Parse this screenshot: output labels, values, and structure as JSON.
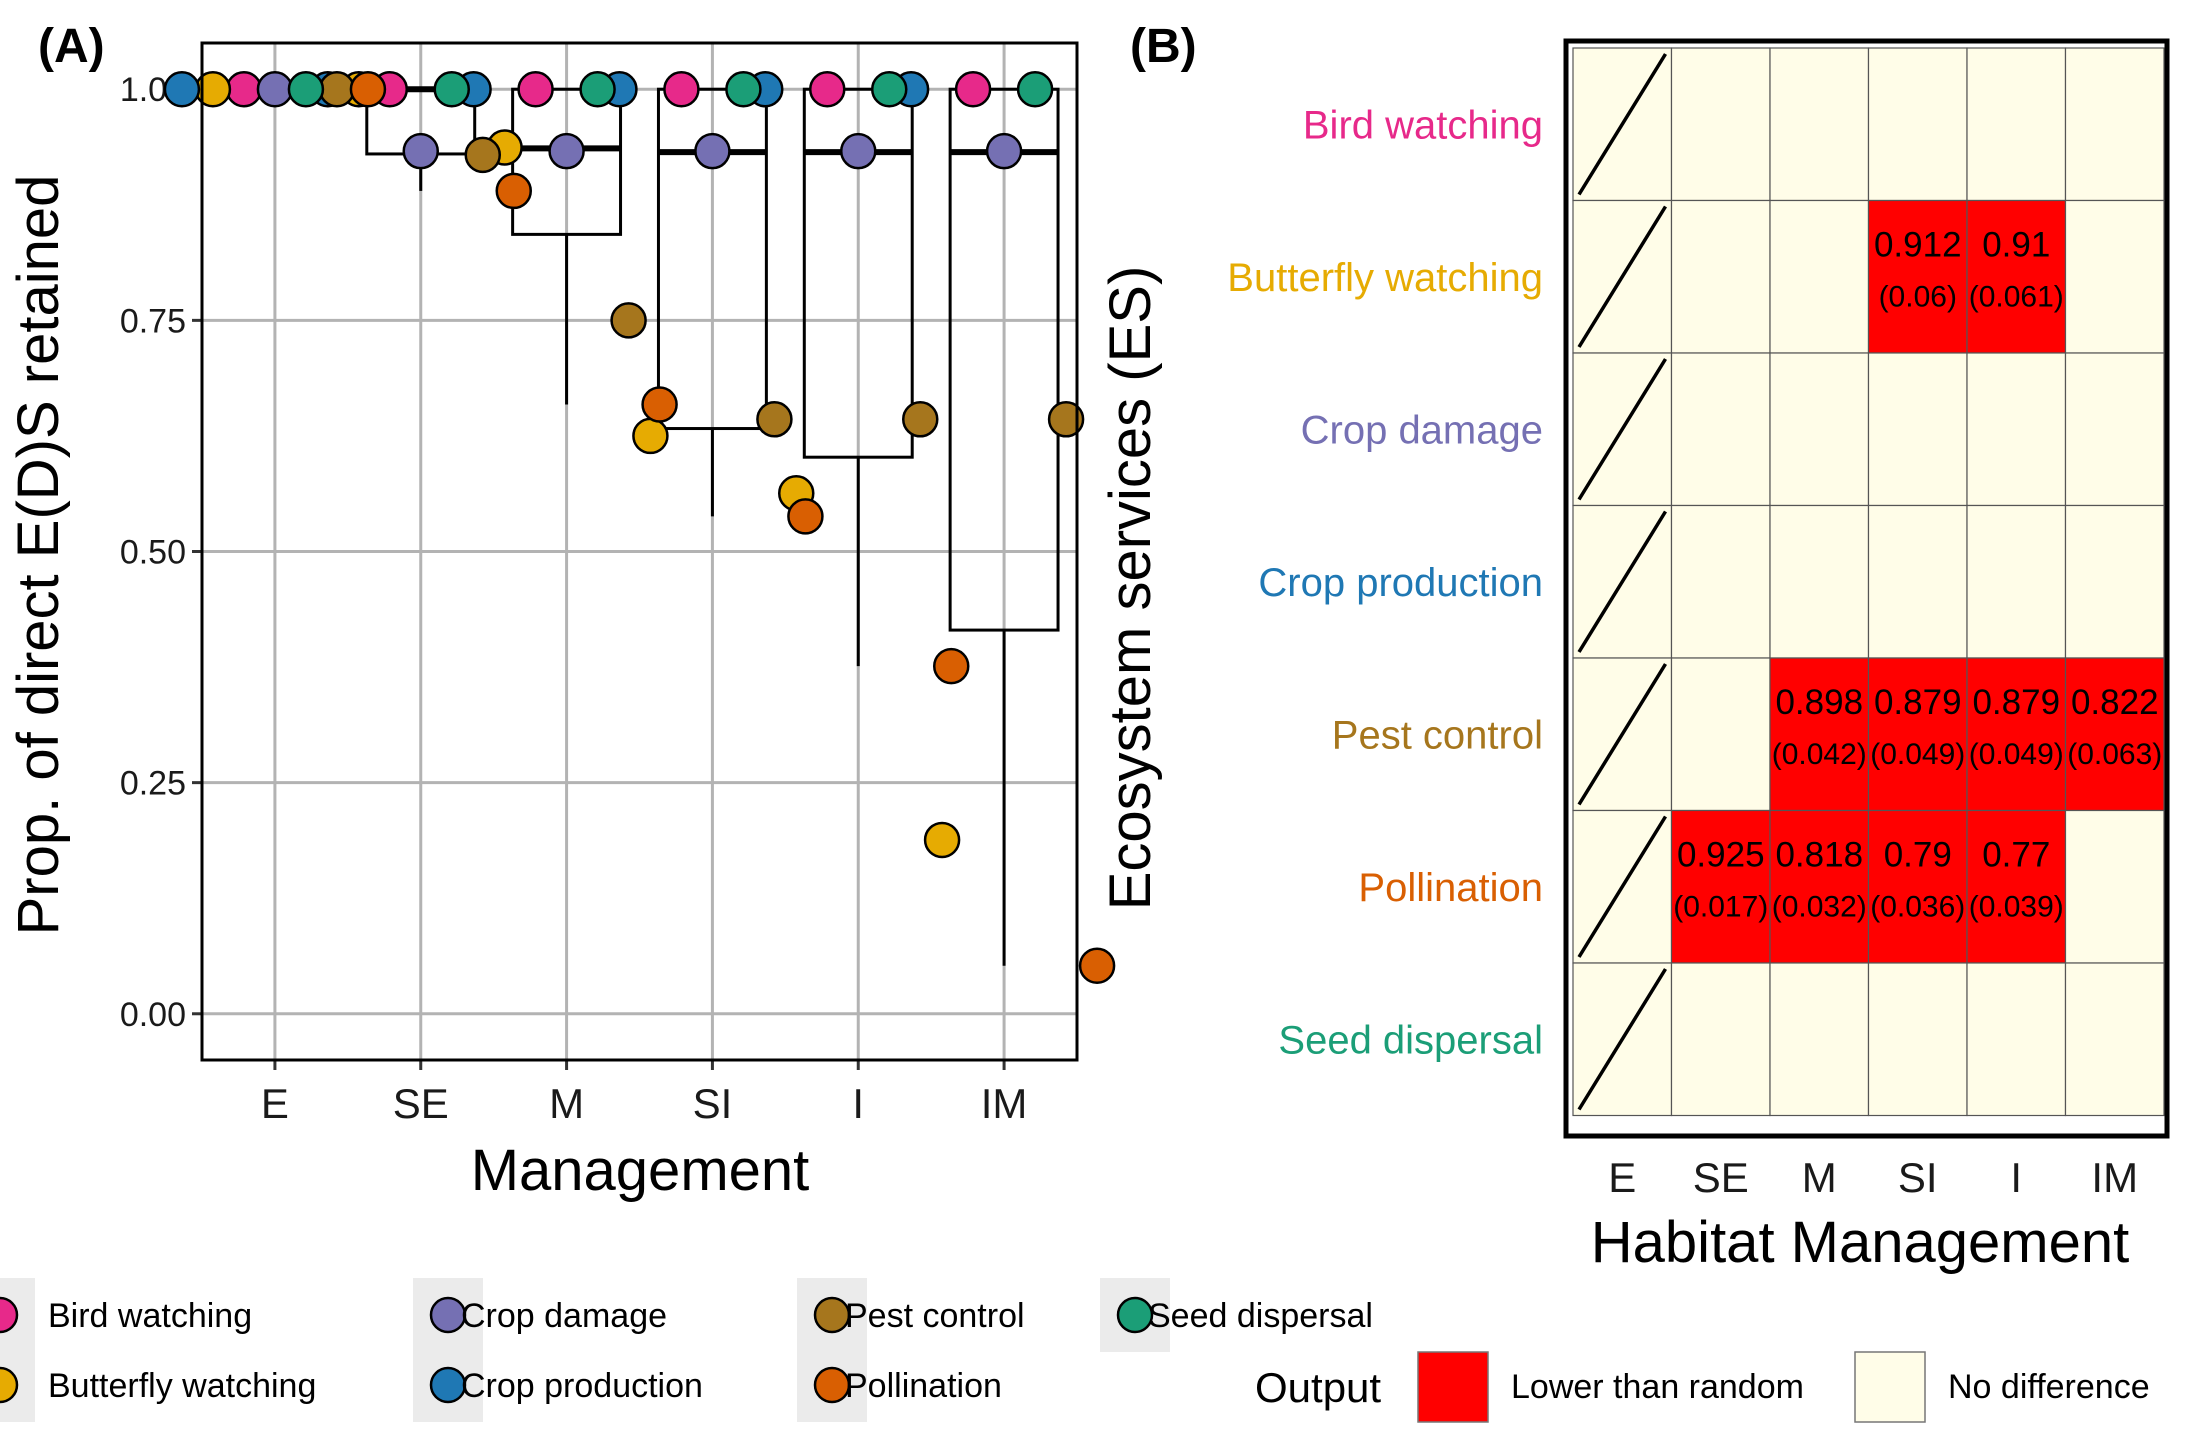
{
  "colors": {
    "bird_watching": "#e7298a",
    "butterfly_watching": "#e6ab02",
    "crop_damage": "#7570b3",
    "crop_production": "#1f78b4",
    "pest_control": "#a6761d",
    "pollination": "#d95f02",
    "seed_dispersal": "#1b9e77",
    "lower_than_random": "#ff0000",
    "no_difference": "#fffde8",
    "gridline": "#b3b3b3"
  },
  "chart_data": [
    {
      "type": "boxplot",
      "panel": "(A)",
      "xlabel": "Management",
      "ylabel": "Prop. of direct E(D)S retained",
      "categories": [
        "E",
        "SE",
        "M",
        "SI",
        "I",
        "IM"
      ],
      "ylim": [
        -0.05,
        1.05
      ],
      "yticks": [
        0.0,
        0.25,
        0.5,
        0.75,
        1.0
      ],
      "ytick_labels": [
        "0.00",
        "0.25",
        "0.50",
        "0.75",
        "1.00"
      ],
      "grid": true,
      "boxes": [
        {
          "category": "E",
          "q1": 1.0,
          "median": 1.0,
          "q3": 1.0,
          "whisker_low": 1.0,
          "whisker_high": 1.0
        },
        {
          "category": "SE",
          "q1": 0.93,
          "median": 1.0,
          "q3": 1.0,
          "whisker_low": 0.89,
          "whisker_high": 1.0
        },
        {
          "category": "M",
          "q1": 0.843,
          "median": 0.936,
          "q3": 1.0,
          "whisker_low": 0.659,
          "whisker_high": 1.0
        },
        {
          "category": "SI",
          "q1": 0.633,
          "median": 0.932,
          "q3": 1.0,
          "whisker_low": 0.538,
          "whisker_high": 1.0
        },
        {
          "category": "I",
          "q1": 0.602,
          "median": 0.932,
          "q3": 1.0,
          "whisker_low": 0.376,
          "whisker_high": 1.0
        },
        {
          "category": "IM",
          "q1": 0.415,
          "median": 0.932,
          "q3": 1.0,
          "whisker_low": 0.052,
          "whisker_high": 1.0
        }
      ],
      "series": [
        {
          "name": "Bird watching",
          "values": [
            1.0,
            1.0,
            1.0,
            1.0,
            1.0,
            1.0
          ]
        },
        {
          "name": "Butterfly watching",
          "values": [
            1.0,
            1.0,
            0.937,
            0.625,
            0.563,
            0.188
          ]
        },
        {
          "name": "Crop damage",
          "values": [
            1.0,
            0.933,
            0.933,
            0.933,
            0.933,
            0.933
          ]
        },
        {
          "name": "Crop production",
          "values": [
            1.0,
            1.0,
            1.0,
            1.0,
            1.0,
            1.0
          ]
        },
        {
          "name": "Pest control",
          "values": [
            1.0,
            0.929,
            0.75,
            0.643,
            0.643,
            0.643
          ]
        },
        {
          "name": "Pollination",
          "values": [
            1.0,
            0.89,
            0.659,
            0.538,
            0.376,
            0.052
          ]
        },
        {
          "name": "Seed dispersal",
          "values": [
            1.0,
            1.0,
            1.0,
            1.0,
            1.0,
            1.0
          ]
        }
      ],
      "point_order": [
        "Crop production",
        "Butterfly watching",
        "Bird watching",
        "Crop damage",
        "Seed dispersal",
        "Pest control",
        "Pollination"
      ],
      "legend": [
        {
          "name": "Bird watching",
          "color_key": "bird_watching"
        },
        {
          "name": "Butterfly watching",
          "color_key": "butterfly_watching"
        },
        {
          "name": "Crop damage",
          "color_key": "crop_damage"
        },
        {
          "name": "Crop production",
          "color_key": "crop_production"
        },
        {
          "name": "Pest control",
          "color_key": "pest_control"
        },
        {
          "name": "Pollination",
          "color_key": "pollination"
        },
        {
          "name": "Seed dispersal",
          "color_key": "seed_dispersal"
        }
      ]
    },
    {
      "type": "heatmap",
      "panel": "(B)",
      "xlabel": "Habitat Management",
      "ylabel": "Ecosystem services (ES)",
      "x_categories": [
        "E",
        "SE",
        "M",
        "SI",
        "I",
        "IM"
      ],
      "y_categories": [
        {
          "name": "Bird watching",
          "color_key": "bird_watching"
        },
        {
          "name": "Butterfly watching",
          "color_key": "butterfly_watching"
        },
        {
          "name": "Crop damage",
          "color_key": "crop_damage"
        },
        {
          "name": "Crop production",
          "color_key": "crop_production"
        },
        {
          "name": "Pest control",
          "color_key": "pest_control"
        },
        {
          "name": "Pollination",
          "color_key": "pollination"
        },
        {
          "name": "Seed dispersal",
          "color_key": "seed_dispersal"
        }
      ],
      "reference_column": "E",
      "cells": [
        {
          "row": "Butterfly watching",
          "col": "SI",
          "output": "Lower than random",
          "value": "0.912",
          "se": "(0.06)"
        },
        {
          "row": "Butterfly watching",
          "col": "I",
          "output": "Lower than random",
          "value": "0.91",
          "se": "(0.061)"
        },
        {
          "row": "Pest control",
          "col": "M",
          "output": "Lower than random",
          "value": "0.898",
          "se": "(0.042)"
        },
        {
          "row": "Pest control",
          "col": "SI",
          "output": "Lower than random",
          "value": "0.879",
          "se": "(0.049)"
        },
        {
          "row": "Pest control",
          "col": "I",
          "output": "Lower than random",
          "value": "0.879",
          "se": "(0.049)"
        },
        {
          "row": "Pest control",
          "col": "IM",
          "output": "Lower than random",
          "value": "0.822",
          "se": "(0.063)"
        },
        {
          "row": "Pollination",
          "col": "SE",
          "output": "Lower than random",
          "value": "0.925",
          "se": "(0.017)"
        },
        {
          "row": "Pollination",
          "col": "M",
          "output": "Lower than random",
          "value": "0.818",
          "se": "(0.032)"
        },
        {
          "row": "Pollination",
          "col": "SI",
          "output": "Lower than random",
          "value": "0.79",
          "se": "(0.036)"
        },
        {
          "row": "Pollination",
          "col": "I",
          "output": "Lower than random",
          "value": "0.77",
          "se": "(0.039)"
        }
      ],
      "default_output": "No difference",
      "legend_title": "Output",
      "legend": [
        {
          "name": "Lower than random",
          "color_key": "lower_than_random"
        },
        {
          "name": "No difference",
          "color_key": "no_difference"
        }
      ]
    }
  ]
}
